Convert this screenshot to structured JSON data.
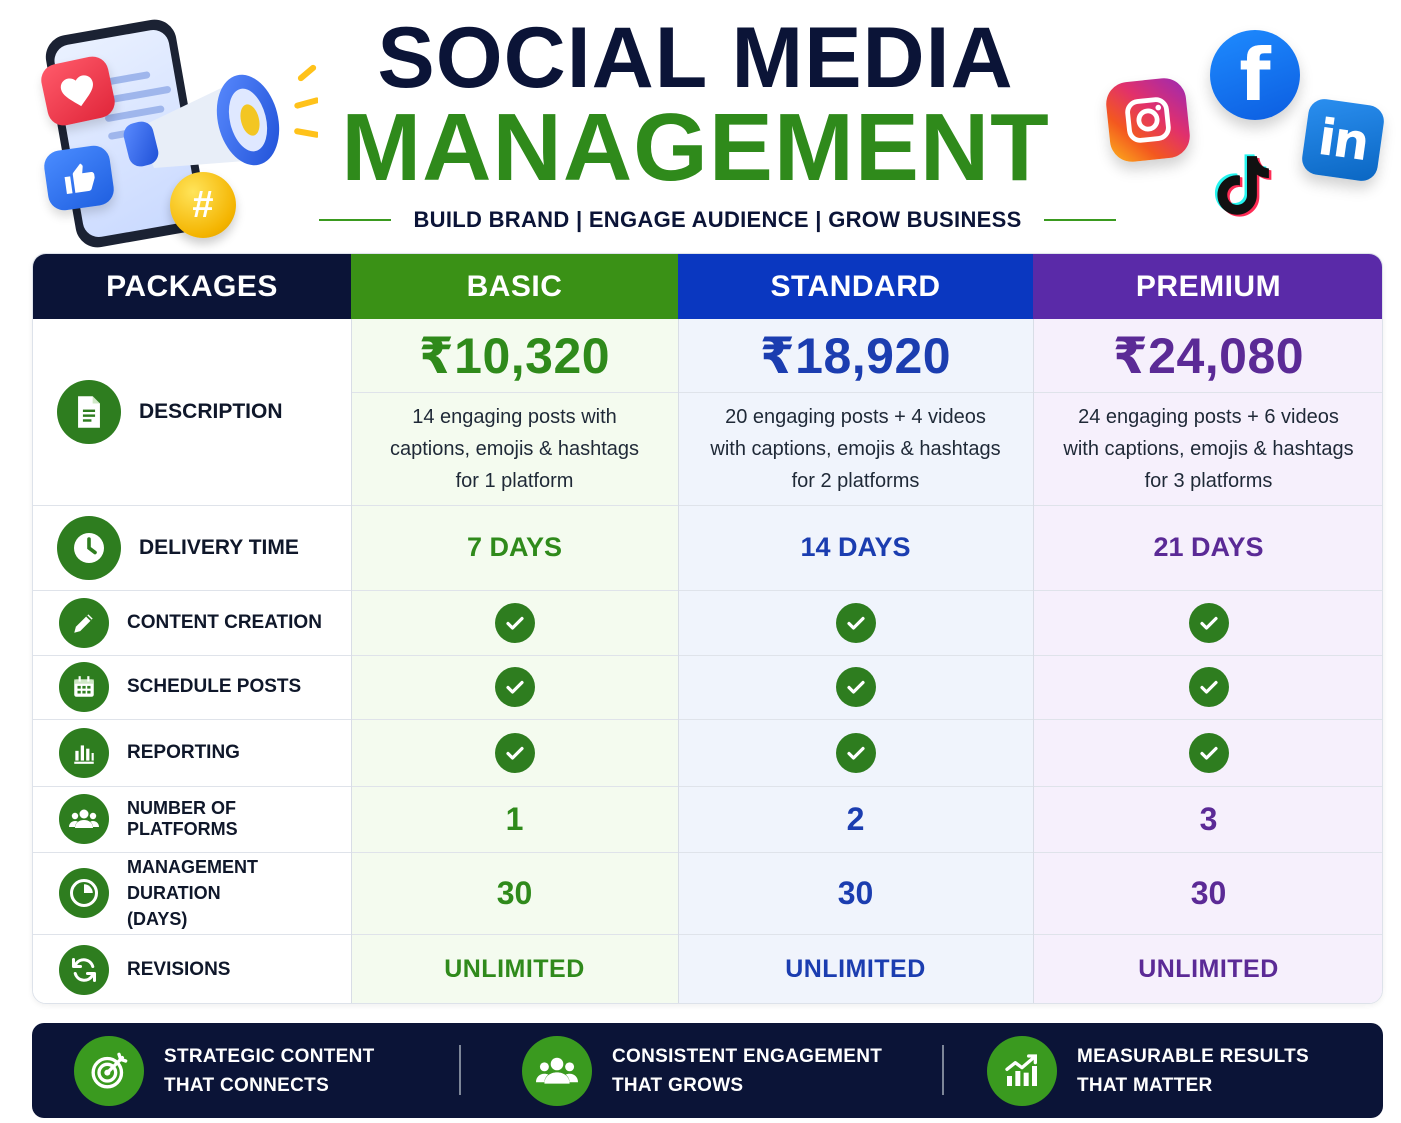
{
  "header": {
    "title_line1": "SOCIAL MEDIA",
    "title_line2": "MANAGEMENT",
    "tagline": [
      "BUILD BRAND",
      "ENGAGE AUDIENCE",
      "GROW BUSINESS"
    ],
    "tagline_separator": "|"
  },
  "illustration": {
    "hash_symbol": "#",
    "icons": [
      "heart-icon",
      "thumbs-up-icon",
      "megaphone-icon",
      "hashtag-icon",
      "phone-icon"
    ]
  },
  "social_icons": [
    "instagram-icon",
    "facebook-icon",
    "linkedin-icon",
    "tiktok-icon"
  ],
  "social_glyphs": {
    "facebook": "f",
    "linkedin": "in"
  },
  "table": {
    "header_label": "PACKAGES",
    "packages": [
      {
        "name": "BASIC",
        "price": "₹10,320",
        "description": "14 engaging posts with\ncaptions, emojis & hashtags\nfor 1 platform",
        "delivery": "7 DAYS",
        "platforms": "1",
        "duration": "30",
        "revisions": "UNLIMITED",
        "color": "#2f8a1b",
        "header_color": "#3a9116",
        "bg": "#f4fbef"
      },
      {
        "name": "STANDARD",
        "price": "₹18,920",
        "description": "20 engaging posts + 4 videos\nwith captions, emojis & hashtags\nfor 2 platforms",
        "delivery": "14 DAYS",
        "platforms": "2",
        "duration": "30",
        "revisions": "UNLIMITED",
        "color": "#1b3db0",
        "header_color": "#0a37c0",
        "bg": "#f0f4fc"
      },
      {
        "name": "PREMIUM",
        "price": "₹24,080",
        "description": "24 engaging posts + 6 videos\nwith captions, emojis & hashtags\nfor 3 platforms",
        "delivery": "21 DAYS",
        "platforms": "3",
        "duration": "30",
        "revisions": "UNLIMITED",
        "color": "#5b2a96",
        "header_color": "#5a2aa8",
        "bg": "#f6f0fc"
      }
    ],
    "rows": {
      "description": "DESCRIPTION",
      "delivery_time": "DELIVERY TIME",
      "content_creation": "CONTENT CREATION",
      "schedule_posts": "SCHEDULE POSTS",
      "reporting": "REPORTING",
      "number_of_platforms": "NUMBER OF PLATFORMS",
      "management_duration": "MANAGEMENT DURATION\n(DAYS)",
      "revisions": "REVISIONS"
    },
    "features_included": {
      "content_creation": [
        true,
        true,
        true
      ],
      "schedule_posts": [
        true,
        true,
        true
      ],
      "reporting": [
        true,
        true,
        true
      ]
    }
  },
  "footer": {
    "features": [
      {
        "line1": "STRATEGIC CONTENT",
        "line2": "THAT CONNECTS",
        "icon": "target-icon"
      },
      {
        "line1": "CONSISTENT ENGAGEMENT",
        "line2": "THAT GROWS",
        "icon": "group-icon"
      },
      {
        "line1": "MEASURABLE RESULTS",
        "line2": "THAT MATTER",
        "icon": "growth-chart-icon"
      }
    ]
  },
  "colors": {
    "navy": "#0b1437",
    "green": "#2f8a1b",
    "icon_green": "#2e7d1f"
  }
}
